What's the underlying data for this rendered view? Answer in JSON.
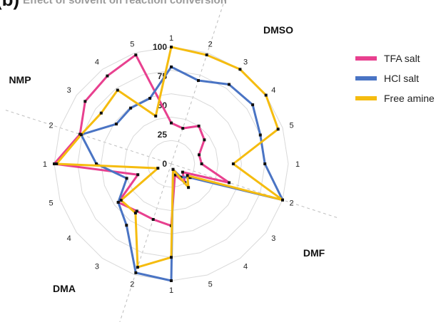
{
  "panel_label": "(b)",
  "chart_data": {
    "type": "radar",
    "title": "Effect of solvent on reaction conversion",
    "r_ticks": [
      0,
      25,
      50,
      75,
      100
    ],
    "rlim": [
      0,
      100
    ],
    "grid": true,
    "legend_position": "right",
    "groups": [
      {
        "name": "DMSO",
        "spokes": [
          "1",
          "2",
          "3",
          "4",
          "5"
        ]
      },
      {
        "name": "DMF",
        "spokes": [
          "1",
          "2",
          "3",
          "4",
          "5"
        ]
      },
      {
        "name": "DMA",
        "spokes": [
          "1",
          "2",
          "3",
          "4",
          "5"
        ]
      },
      {
        "name": "NMP",
        "spokes": [
          "1",
          "2",
          "3",
          "4",
          "5"
        ]
      }
    ],
    "categories": [
      "DMSO 1",
      "DMSO 2",
      "DMSO 3",
      "DMSO 4",
      "DMSO 5",
      "DMF 1",
      "DMF 2",
      "DMF 3",
      "DMF 4",
      "DMF 5",
      "DMA 1",
      "DMA 2",
      "DMA 3",
      "DMA 4",
      "DMA 5",
      "NMP 1",
      "NMP 2",
      "NMP 3",
      "NMP 4",
      "NMP 5"
    ],
    "series": [
      {
        "name": "TFA salt",
        "color": "#e8408f",
        "values": [
          35,
          32,
          40,
          35,
          25,
          26,
          52,
          12,
          20,
          10,
          53,
          50,
          50,
          56,
          30,
          100,
          82,
          91,
          93,
          98
        ]
      },
      {
        "name": "HCl salt",
        "color": "#4a74c4",
        "values": [
          83,
          75,
          84,
          86,
          80,
          80,
          100,
          20,
          14,
          5,
          100,
          98,
          65,
          56,
          40,
          64,
          81,
          58,
          59,
          59
        ]
      },
      {
        "name": "Free amine",
        "color": "#f5bc0f",
        "values": [
          100,
          98,
          100,
          100,
          96,
          53,
          100,
          17,
          25,
          5,
          80,
          93,
          52,
          53,
          12,
          98,
          81,
          74,
          78,
          43
        ]
      }
    ]
  }
}
